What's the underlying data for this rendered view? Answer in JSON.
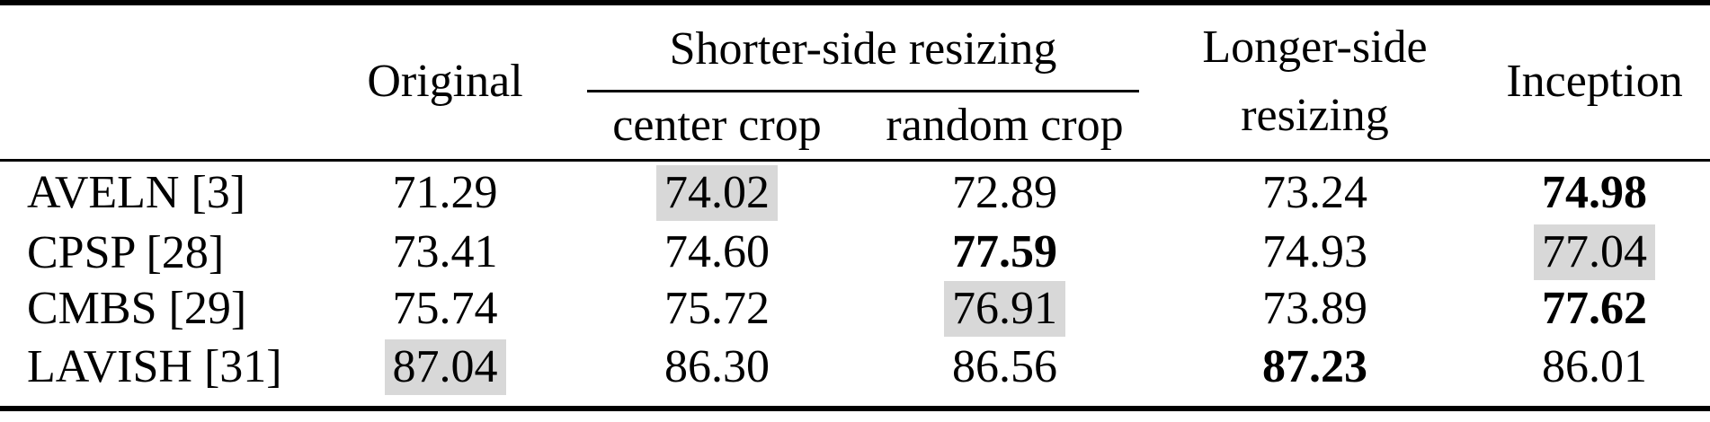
{
  "table": {
    "header": {
      "corner": "",
      "original": "Original",
      "shorter_group": "Shorter-side resizing",
      "center_crop": "center crop",
      "random_crop": "random crop",
      "longer_line1": "Longer-side",
      "longer_line2": "resizing",
      "inception": "Inception"
    },
    "rows": [
      {
        "label": "AVELN [3]",
        "cells": [
          {
            "value": "71.29",
            "bold": false,
            "highlight": false
          },
          {
            "value": "74.02",
            "bold": false,
            "highlight": true
          },
          {
            "value": "72.89",
            "bold": false,
            "highlight": false
          },
          {
            "value": "73.24",
            "bold": false,
            "highlight": false
          },
          {
            "value": "74.98",
            "bold": true,
            "highlight": false
          }
        ]
      },
      {
        "label": "CPSP [28]",
        "cells": [
          {
            "value": "73.41",
            "bold": false,
            "highlight": false
          },
          {
            "value": "74.60",
            "bold": false,
            "highlight": false
          },
          {
            "value": "77.59",
            "bold": true,
            "highlight": false
          },
          {
            "value": "74.93",
            "bold": false,
            "highlight": false
          },
          {
            "value": "77.04",
            "bold": false,
            "highlight": true
          }
        ]
      },
      {
        "label": "CMBS [29]",
        "cells": [
          {
            "value": "75.74",
            "bold": false,
            "highlight": false
          },
          {
            "value": "75.72",
            "bold": false,
            "highlight": false
          },
          {
            "value": "76.91",
            "bold": false,
            "highlight": true
          },
          {
            "value": "73.89",
            "bold": false,
            "highlight": false
          },
          {
            "value": "77.62",
            "bold": true,
            "highlight": false
          }
        ]
      },
      {
        "label": "LAVISH [31]",
        "cells": [
          {
            "value": "87.04",
            "bold": false,
            "highlight": true
          },
          {
            "value": "86.30",
            "bold": false,
            "highlight": false
          },
          {
            "value": "86.56",
            "bold": false,
            "highlight": false
          },
          {
            "value": "87.23",
            "bold": true,
            "highlight": false
          },
          {
            "value": "86.01",
            "bold": false,
            "highlight": false
          }
        ]
      }
    ],
    "colors": {
      "highlight": "#d8d8d8",
      "rule": "#000000",
      "text": "#000000",
      "background": "#ffffff"
    }
  },
  "chart_data": {
    "type": "table",
    "columns": [
      "",
      "Original",
      "Shorter-side resizing: center crop",
      "Shorter-side resizing: random crop",
      "Longer-side resizing",
      "Inception"
    ],
    "rows": [
      {
        "label": "AVELN [3]",
        "values": [
          71.29,
          74.02,
          72.89,
          73.24,
          74.98
        ]
      },
      {
        "label": "CPSP [28]",
        "values": [
          73.41,
          74.6,
          77.59,
          74.93,
          77.04
        ]
      },
      {
        "label": "CMBS [29]",
        "values": [
          75.74,
          75.72,
          76.91,
          73.89,
          77.62
        ]
      },
      {
        "label": "LAVISH [31]",
        "values": [
          87.04,
          86.3,
          86.56,
          87.23,
          86.01
        ]
      }
    ]
  }
}
